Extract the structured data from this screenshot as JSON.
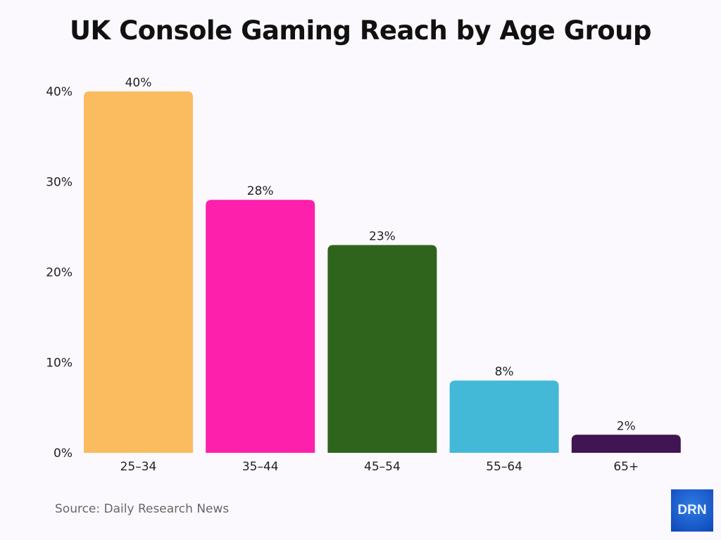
{
  "chart_data": {
    "type": "bar",
    "title": "UK Console Gaming Reach by Age Group",
    "categories": [
      "25–34",
      "35–44",
      "45–54",
      "55–64",
      "65+"
    ],
    "values": [
      40,
      28,
      23,
      8,
      2
    ],
    "data_labels": [
      "40%",
      "28%",
      "23%",
      "8%",
      "2%"
    ],
    "colors": [
      "#fbbb5f",
      "#fd20ac",
      "#2e641c",
      "#43b9d7",
      "#411454"
    ],
    "yticks": [
      0,
      10,
      20,
      30,
      40
    ],
    "ytick_labels": [
      "0%",
      "10%",
      "20%",
      "30%",
      "40%"
    ],
    "ylim": [
      0,
      40
    ],
    "grid": false,
    "xlabel": "",
    "ylabel": ""
  },
  "footer": {
    "source": "Source: Daily Research News",
    "logo": "DRN"
  }
}
